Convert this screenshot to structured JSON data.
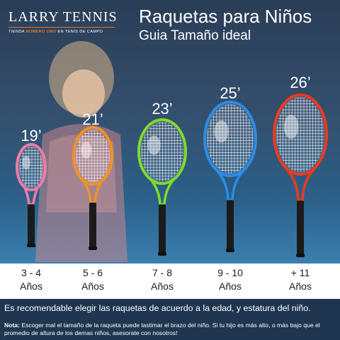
{
  "brand": {
    "name": "LARRY TENNIS",
    "tagline_prefix": "TIENDA",
    "tagline_highlight": "NÚMERO UNO",
    "tagline_suffix": "EN TENIS DE CAMPO",
    "accent_color": "#e8762b"
  },
  "header": {
    "title": "Raquetas para Niños",
    "subtitle": "Guia Tamaño ideal"
  },
  "rackets": [
    {
      "size": "19’",
      "age_range": "3 - 4",
      "age_unit": "Años",
      "color": "#f47aa8"
    },
    {
      "size": "21’",
      "age_range": "5 - 6",
      "age_unit": "Años",
      "color": "#f39226"
    },
    {
      "size": "23’",
      "age_range": "7 - 8",
      "age_unit": "Años",
      "color": "#7fdc2a"
    },
    {
      "size": "25’",
      "age_range": "9 - 10",
      "age_unit": "Años",
      "color": "#2a8de6"
    },
    {
      "size": "26’",
      "age_range": "+ 11",
      "age_unit": "Años",
      "color": "#ee3a1e"
    }
  ],
  "recommendation": "Es recomendable elegir las raquetas de acuerdo a la edad, y estatura del niño.",
  "note": {
    "label": "Nota:",
    "text": "Escoger mal el tamaño de la raqueta puede lastimar el brazo del niño. Si tu hijo es más alto, o más bajo que el promedio de altura de los demas niños, asesorate con nosotros!"
  }
}
